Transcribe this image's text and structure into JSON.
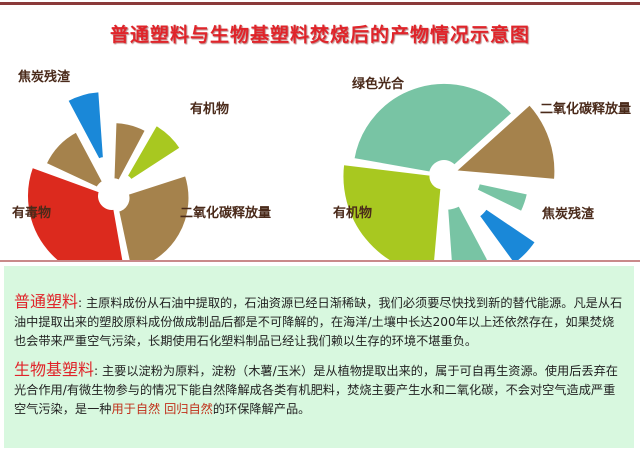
{
  "title": "普通塑料与生物基塑料焚烧后的产物情况示意图",
  "left_pie": {
    "labels": {
      "char": "焦炭残渣",
      "organic": "有机物",
      "toxic": "有毒物",
      "co2": "二氧化碳释放量"
    }
  },
  "right_pie": {
    "labels": {
      "photosynthesis": "绿色光合",
      "co2": "二氧化碳释放量",
      "organic": "有机物",
      "char": "焦炭残渣"
    }
  },
  "colors": {
    "red": "#dc2a1e",
    "brown": "#a5824c",
    "green": "#a8c820",
    "blue": "#1a88d8",
    "teal": "#78c4a4"
  },
  "ordinary": {
    "head": "普通塑料",
    "text": ": 主原料成份从石油中提取的，石油资源已经日渐稀缺，我们必须要尽快找到新的替代能源。凡是从石油中提取出来的塑胶原料成份做成制品后都是不可降解的，在海洋/土壤中长达200年以上还依然存在，如果焚烧也会带来严重空气污染，长期使用石化塑料制品已经让我们赖以生存的环境不堪重负。"
  },
  "bio": {
    "head": "生物基塑料",
    "text1": ": 主要以淀粉为原料，淀粉（木薯/玉米）是从植物提取出来的，属于可自再生资源。使用后丢弃在光合作用/有微生物参与的情况下能自然降解成各类有机肥料，焚烧主要产生水和二氧化碳，不会对空气造成严重空气污染，是一种",
    "highlight1": "用于自然",
    "space": " ",
    "highlight2": "回归自然",
    "text2": "的环保降解产品。"
  }
}
